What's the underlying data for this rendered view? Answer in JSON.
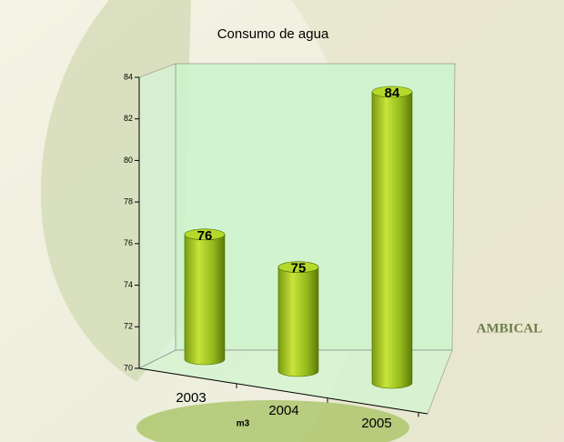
{
  "chart_data": {
    "type": "bar",
    "title": "Consumo de agua",
    "x_label": "m3",
    "categories": [
      "2003",
      "2004",
      "2005"
    ],
    "values": [
      76,
      75,
      84
    ],
    "ylim": [
      70,
      84
    ],
    "yticks": [
      70,
      72,
      74,
      76,
      78,
      80,
      82,
      84
    ],
    "color": "#9acd32"
  },
  "logo": "AMBICAL"
}
